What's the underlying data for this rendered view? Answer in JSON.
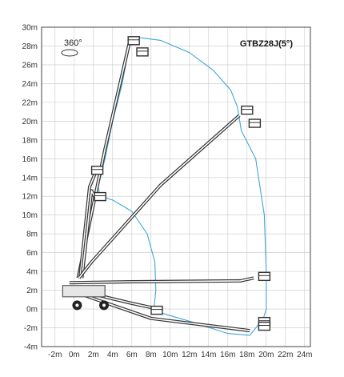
{
  "chart_data": {
    "type": "diagram",
    "title": "GTBZ28J(5°)",
    "rotation_label": "360°",
    "x_ticks": [
      "-2m",
      "0m",
      "2m",
      "4m",
      "6m",
      "8m",
      "10m",
      "12m",
      "14m",
      "16m",
      "18m",
      "20m",
      "22m",
      "24m"
    ],
    "x_tick_values": [
      -2,
      0,
      2,
      4,
      6,
      8,
      10,
      12,
      14,
      16,
      18,
      20,
      22,
      24
    ],
    "y_ticks": [
      "30m",
      "28m",
      "26m",
      "24m",
      "22m",
      "20m",
      "18m",
      "16m",
      "14m",
      "12m",
      "10m",
      "8m",
      "6m",
      "4m",
      "2m",
      "0m",
      "-2m",
      "-4m"
    ],
    "y_tick_values": [
      30,
      28,
      26,
      24,
      22,
      20,
      18,
      16,
      14,
      12,
      10,
      8,
      6,
      4,
      2,
      0,
      -2,
      -4
    ],
    "xlim": [
      -3.4,
      24.6
    ],
    "ylim": [
      -4,
      30
    ],
    "grid": true,
    "colors": {
      "grid": "#c8c8c8",
      "axis": "#444444",
      "envelope": "#3fa7d6",
      "boom": "#333333",
      "machine": "#555555"
    },
    "outer_envelope": [
      [
        6.0,
        29.0
      ],
      [
        9.0,
        28.6
      ],
      [
        12.0,
        27.3
      ],
      [
        14.5,
        25.4
      ],
      [
        16.3,
        23.3
      ],
      [
        17.0,
        21.5
      ],
      [
        17.4,
        19.0
      ],
      [
        18.9,
        16.0
      ],
      [
        19.8,
        10.0
      ],
      [
        20.0,
        4.0
      ],
      [
        20.0,
        0.0
      ],
      [
        19.7,
        -1.0
      ],
      [
        18.3,
        -2.8
      ],
      [
        16.0,
        -2.6
      ],
      [
        12.0,
        -1.3
      ],
      [
        9.0,
        -0.4
      ],
      [
        8.2,
        -0.3
      ]
    ],
    "inner_envelope": [
      [
        5.9,
        29.0
      ],
      [
        5.0,
        24.0
      ],
      [
        4.0,
        20.0
      ],
      [
        3.2,
        16.0
      ],
      [
        2.5,
        13.0
      ],
      [
        2.7,
        12.0
      ],
      [
        4.0,
        11.6
      ],
      [
        6.0,
        10.4
      ],
      [
        7.6,
        8.0
      ],
      [
        8.4,
        5.0
      ],
      [
        8.5,
        2.0
      ],
      [
        8.3,
        0.0
      ]
    ],
    "booms": [
      {
        "points": [
          [
            0.4,
            3.3
          ],
          [
            3.2,
            17.0
          ],
          [
            5.8,
            28.6
          ]
        ]
      },
      {
        "points": [
          [
            0.6,
            3.3
          ],
          [
            1.6,
            13.0
          ],
          [
            2.4,
            15.0
          ]
        ]
      },
      {
        "points": [
          [
            0.8,
            3.3
          ],
          [
            1.8,
            12.6
          ],
          [
            2.2,
            11.8
          ]
        ]
      },
      {
        "points": [
          [
            0.5,
            3.3
          ],
          [
            1.8,
            5.0
          ],
          [
            9.0,
            13.2
          ],
          [
            17.2,
            20.6
          ]
        ]
      },
      {
        "points": [
          [
            -0.5,
            2.8
          ],
          [
            6.0,
            2.9
          ],
          [
            17.3,
            3.0
          ],
          [
            18.7,
            3.3
          ]
        ]
      },
      {
        "points": [
          [
            -0.5,
            2.2
          ],
          [
            6.0,
            0.6
          ],
          [
            9.2,
            -0.1
          ]
        ]
      },
      {
        "points": [
          [
            -0.5,
            2.0
          ],
          [
            8.0,
            -1.0
          ],
          [
            18.3,
            -2.3
          ]
        ]
      }
    ],
    "baskets": [
      [
        6.2,
        28.4
      ],
      [
        7.1,
        27.2
      ],
      [
        2.4,
        14.6
      ],
      [
        2.7,
        11.8
      ],
      [
        18.0,
        21.0
      ],
      [
        18.8,
        19.6
      ],
      [
        19.8,
        3.3
      ],
      [
        19.8,
        -1.5
      ],
      [
        19.8,
        -2.0
      ],
      [
        8.6,
        -0.3
      ]
    ],
    "machine_body": [
      [
        -1.2,
        1.3
      ],
      [
        3.2,
        1.3
      ],
      [
        3.2,
        2.5
      ],
      [
        -1.2,
        2.5
      ]
    ],
    "wheels": [
      [
        0.3,
        0.4
      ],
      [
        3.1,
        0.4
      ]
    ]
  }
}
